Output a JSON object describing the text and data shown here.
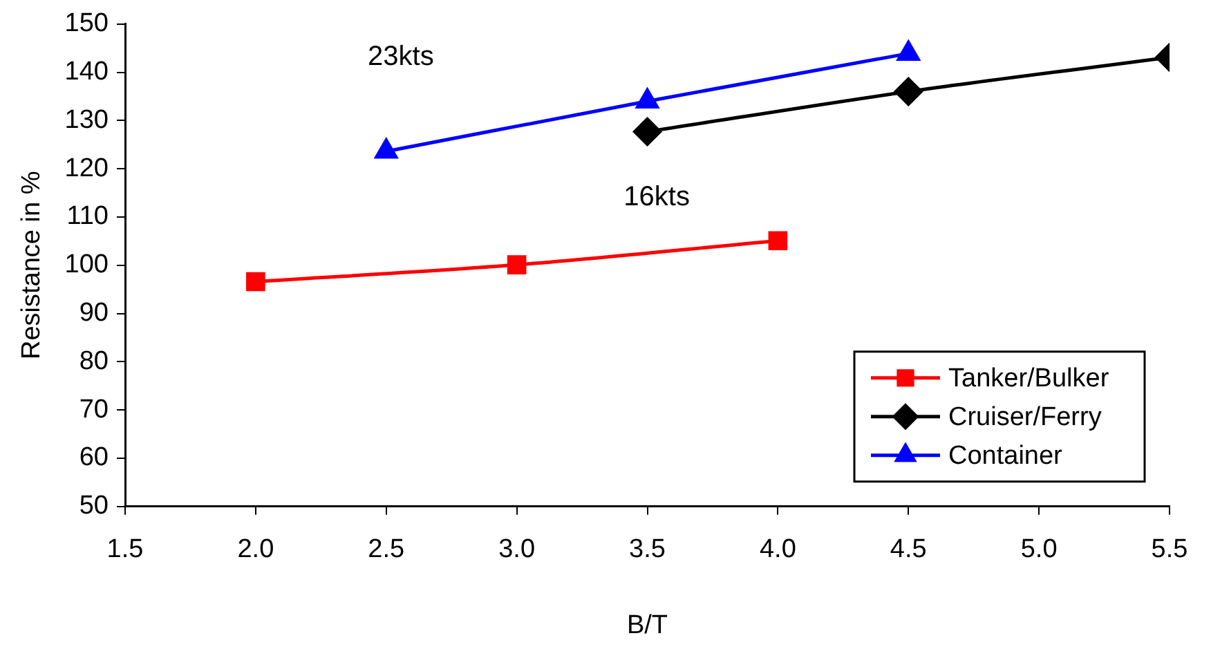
{
  "chart_data": {
    "type": "line",
    "xlabel": "B/T",
    "ylabel": "Resistance in %",
    "xlim": [
      1.5,
      5.5
    ],
    "xticks": [
      1.5,
      {
        "value": 2,
        "label": "2.0"
      },
      2.5,
      {
        "value": 3,
        "label": "3.0"
      },
      3.5,
      {
        "value": 4,
        "label": "4.0"
      },
      4.5,
      {
        "value": 5,
        "label": "5.0"
      },
      5.5
    ],
    "ylim": [
      50,
      150
    ],
    "yticks": [
      50,
      60,
      70,
      80,
      90,
      100,
      110,
      120,
      130,
      140,
      150
    ],
    "grid": false,
    "legend": "bottom right",
    "line_style": "solid",
    "series": [
      {
        "name": "Tanker/Bulker",
        "color": "#ff0000",
        "marker": "square",
        "x": [
          2.0,
          3.0,
          4.0
        ],
        "values": [
          96.6,
          100.1,
          105.1
        ]
      },
      {
        "name": "Cruiser/Ferry",
        "color": "#000000",
        "marker": "diamond",
        "x": [
          3.5,
          4.5,
          5.5
        ],
        "values": [
          127.7,
          136.0,
          143.1
        ]
      },
      {
        "name": "Container",
        "color": "#0000ff",
        "marker": "triangle",
        "x": [
          2.5,
          3.5,
          4.5
        ],
        "values": [
          123.6,
          134.0,
          143.9
        ]
      }
    ],
    "annotations": [
      "23kts",
      "16kts"
    ]
  }
}
